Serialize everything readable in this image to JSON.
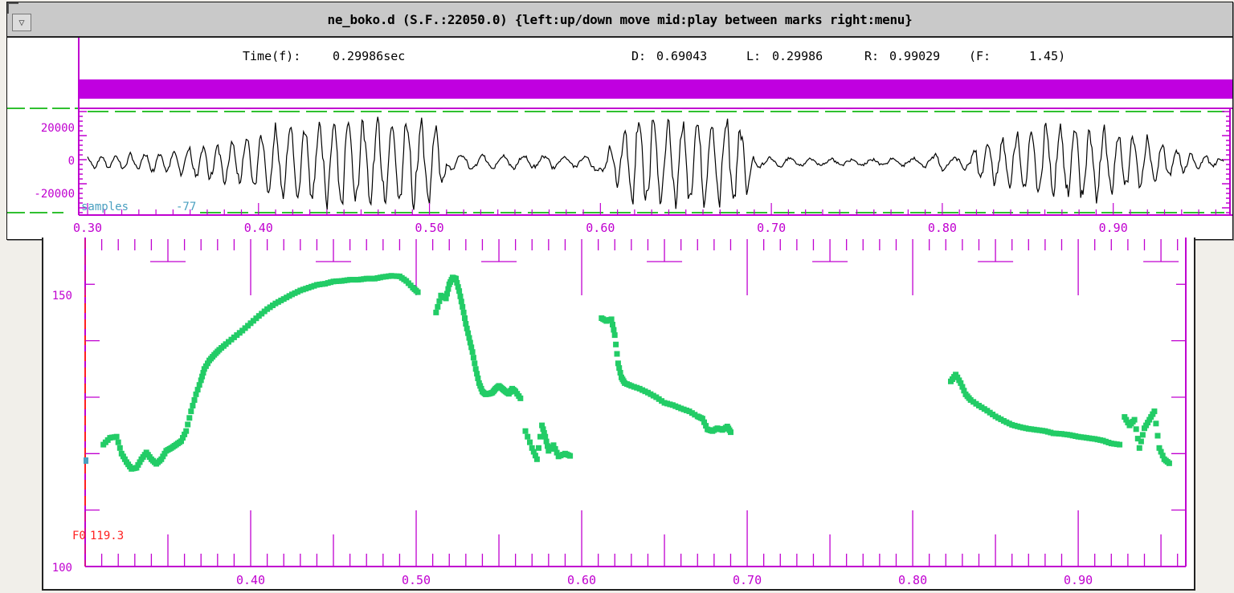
{
  "window": {
    "title": "ne_boko.d (S.F.:22050.0) {left:up/down move  mid:play between marks  right:menu}",
    "menu_glyph": "▽"
  },
  "readout": {
    "time_label": "Time(f):",
    "time_value": "0.29986sec",
    "d_label": "D:",
    "d_value": "0.69043",
    "l_label": "L:",
    "l_value": "0.29986",
    "r_label": "R:",
    "r_value": "0.99029",
    "f_label": "(F:",
    "f_value": "1.45)"
  },
  "waveform": {
    "y_ticks": [
      "20000",
      "0",
      "-20000"
    ],
    "units_label": "samples",
    "cursor_value": "-77",
    "x_ticks": [
      "0.30",
      "0.40",
      "0.50",
      "0.60",
      "0.70",
      "0.80",
      "0.90"
    ]
  },
  "f0_plot": {
    "y_ticks": [
      "150",
      "100"
    ],
    "readout_label": "F0",
    "readout_value": "119.3",
    "x_ticks": [
      "0.40",
      "0.50",
      "0.60",
      "0.70",
      "0.80",
      "0.90"
    ]
  },
  "colors": {
    "axis": "#c000d0",
    "bar": "#c000e0",
    "pitch": "#22cc66",
    "marker": "#ff2020",
    "cursor": "#4aa0c0",
    "dashes": "#30c030"
  },
  "chart_data": {
    "type": "scatter",
    "xlim": [
      0.3,
      0.965
    ],
    "ylim": [
      100,
      158
    ],
    "segments": [
      {
        "x": [
          0.311,
          0.315,
          0.319,
          0.322,
          0.325,
          0.328,
          0.331,
          0.334,
          0.337,
          0.34,
          0.343,
          0.346,
          0.349,
          0.352,
          0.355,
          0.358,
          0.361,
          0.364,
          0.367,
          0.37,
          0.372,
          0.375,
          0.378,
          0.381,
          0.385,
          0.39,
          0.395,
          0.4,
          0.405,
          0.41,
          0.415,
          0.42,
          0.425,
          0.43,
          0.435,
          0.44,
          0.445,
          0.45,
          0.455,
          0.46,
          0.465,
          0.47,
          0.475,
          0.48,
          0.485,
          0.49,
          0.494,
          0.498,
          0.501
        ],
        "y": [
          121.6,
          122.8,
          123.0,
          120.0,
          118.5,
          117.3,
          117.5,
          119.0,
          120.2,
          119.0,
          118.2,
          119.0,
          120.5,
          121.0,
          121.6,
          122.2,
          124.0,
          127.5,
          130.5,
          133.0,
          135.0,
          136.5,
          137.5,
          138.4,
          139.4,
          140.6,
          141.8,
          143.1,
          144.4,
          145.6,
          146.6,
          147.4,
          148.2,
          148.9,
          149.4,
          149.9,
          150.1,
          150.5,
          150.6,
          150.8,
          150.8,
          151.0,
          151.0,
          151.3,
          151.5,
          151.4,
          150.6,
          149.4,
          148.6
        ]
      },
      {
        "x": [
          0.512,
          0.515,
          0.518,
          0.52,
          0.522,
          0.524,
          0.526,
          0.528,
          0.53,
          0.532,
          0.534,
          0.536,
          0.538,
          0.54,
          0.542,
          0.544,
          0.546,
          0.548,
          0.55,
          0.552,
          0.554,
          0.556,
          0.558,
          0.56,
          0.563
        ],
        "y": [
          145.0,
          148.0,
          147.5,
          150.0,
          151.2,
          151.0,
          148.8,
          146.0,
          143.0,
          140.5,
          138.0,
          135.0,
          132.5,
          131.0,
          130.5,
          130.6,
          130.8,
          131.5,
          132.0,
          131.5,
          131.0,
          130.6,
          131.5,
          131.0,
          129.8
        ]
      },
      {
        "x": [
          0.566,
          0.57,
          0.573,
          0.576,
          0.578,
          0.58,
          0.583,
          0.586,
          0.59,
          0.593
        ],
        "y": [
          124.0,
          121.0,
          119.0,
          125.0,
          123.0,
          120.5,
          121.5,
          119.5,
          120.0,
          119.6
        ]
      },
      {
        "x": [
          0.612,
          0.615,
          0.618,
          0.62,
          0.622,
          0.624,
          0.626,
          0.63,
          0.635,
          0.64,
          0.645,
          0.65,
          0.655,
          0.66,
          0.665,
          0.67,
          0.673,
          0.676,
          0.679,
          0.682,
          0.685,
          0.688,
          0.69
        ],
        "y": [
          144.0,
          143.5,
          143.8,
          141.0,
          136.0,
          133.5,
          132.5,
          132.0,
          131.5,
          130.8,
          130.0,
          129.0,
          128.6,
          128.0,
          127.5,
          126.6,
          126.2,
          124.3,
          124.0,
          124.5,
          124.2,
          124.8,
          123.8
        ]
      },
      {
        "x": [
          0.823,
          0.826,
          0.829,
          0.832,
          0.835,
          0.84,
          0.845,
          0.85,
          0.855,
          0.86,
          0.865,
          0.87,
          0.875,
          0.88,
          0.885,
          0.89,
          0.895,
          0.9,
          0.905,
          0.91,
          0.915,
          0.92,
          0.925
        ],
        "y": [
          132.8,
          134.0,
          132.5,
          130.5,
          129.5,
          128.5,
          127.6,
          126.6,
          125.8,
          125.1,
          124.7,
          124.4,
          124.2,
          124.0,
          123.6,
          123.5,
          123.3,
          123.0,
          122.8,
          122.6,
          122.3,
          121.8,
          121.6
        ]
      },
      {
        "x": [
          0.928,
          0.931,
          0.934,
          0.937,
          0.94,
          0.943,
          0.946,
          0.949,
          0.952,
          0.955
        ],
        "y": [
          126.5,
          125.0,
          126.0,
          121.0,
          124.5,
          126.0,
          127.5,
          121.0,
          119.0,
          118.3
        ]
      }
    ]
  }
}
